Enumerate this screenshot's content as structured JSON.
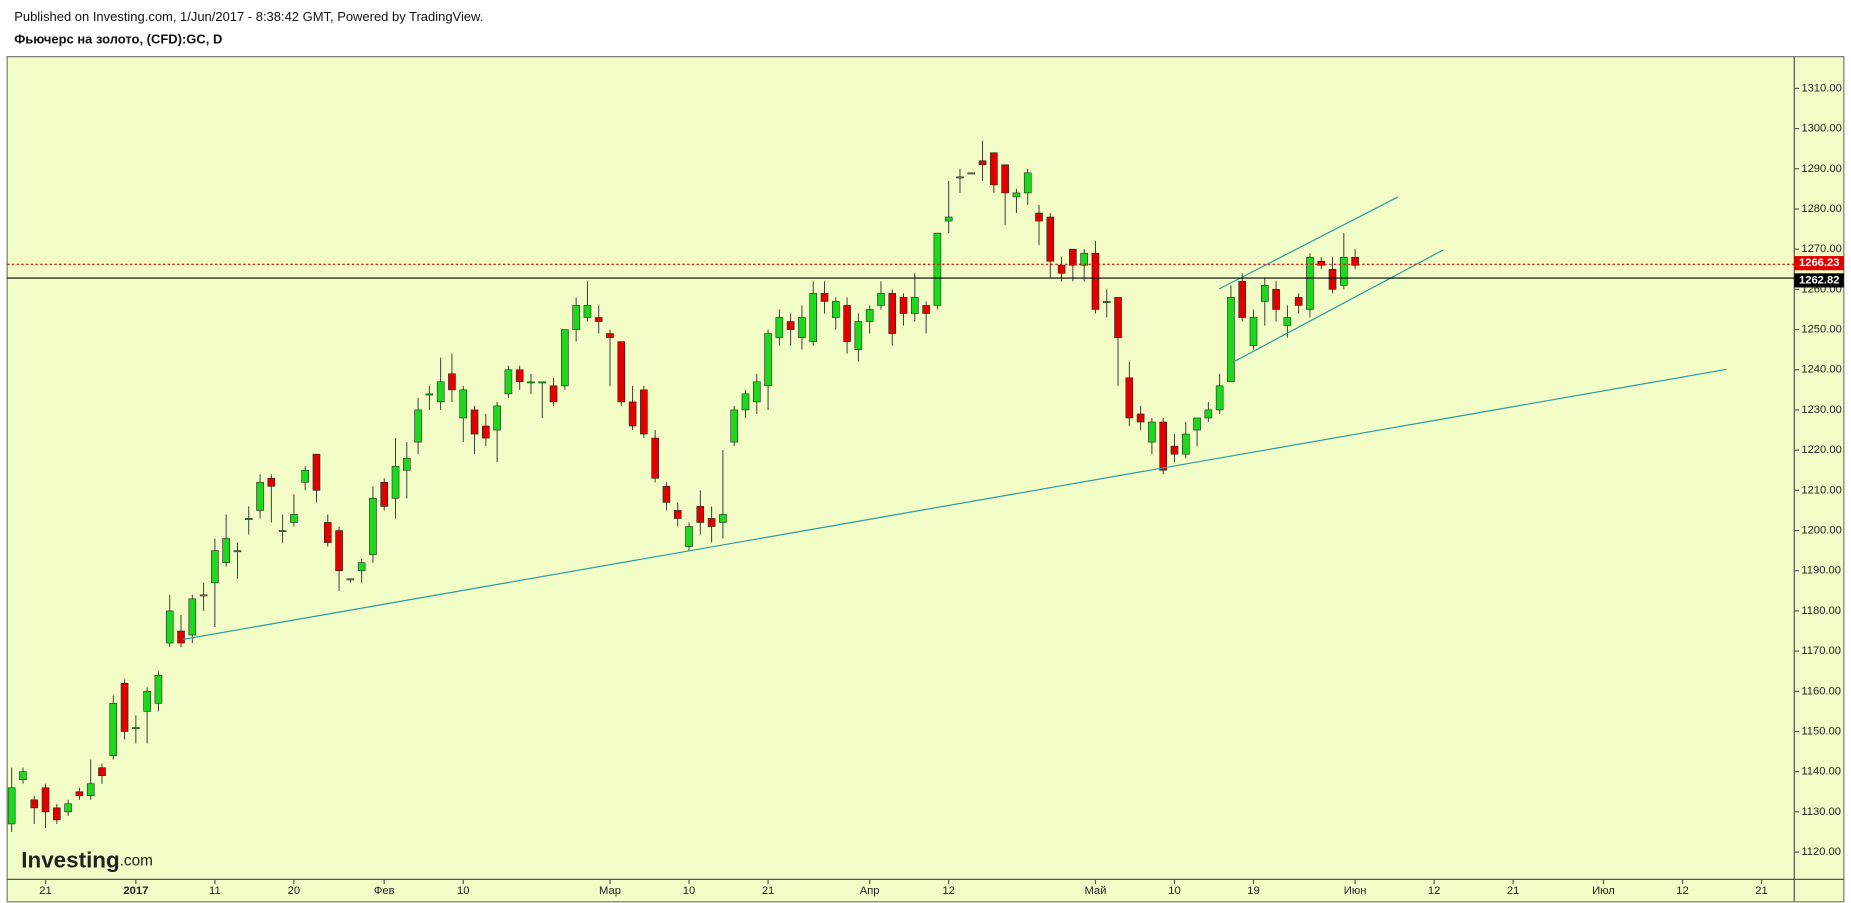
{
  "chart_data": {
    "type": "candlestick",
    "source": "Published on Investing.com, 1/Jun/2017 - 8:38:42 GMT, Powered by TradingView.",
    "title": "Фьючерс на золото, (CFD):GC, D",
    "logo": {
      "name": "Investing",
      "suffix": ".com"
    },
    "up_color": "#1ed81e",
    "down_color": "#e00000",
    "open": [
      1127,
      1138,
      1133,
      1136,
      1131,
      1130,
      1135,
      1134,
      1141,
      1144,
      1162,
      1151,
      1155,
      1157,
      1172,
      1175,
      1174,
      1184,
      1187,
      1192,
      1195,
      1203,
      1205,
      1213,
      1200,
      1202,
      1212,
      1219,
      1202,
      1200,
      1188,
      1190,
      1194,
      1212,
      1208,
      1215,
      1222,
      1234,
      1232,
      1239,
      1228,
      1230,
      1226,
      1225,
      1234,
      1240,
      1237,
      1237,
      1236,
      1236,
      1250,
      1253,
      1253,
      1249,
      1247,
      1232,
      1235,
      1223,
      1211,
      1205,
      1196,
      1206,
      1203,
      1202,
      1222,
      1230,
      1232,
      1236,
      1248,
      1252,
      1248,
      1247,
      1259,
      1253,
      1256,
      1245,
      1252,
      1256,
      1259,
      1258,
      1254,
      1256,
      1256,
      1277,
      1288,
      1289,
      1292,
      1294,
      1291,
      1283,
      1284,
      1279,
      1278,
      1266,
      1270,
      1266,
      1269,
      1257,
      1258,
      1238,
      1229,
      1222,
      1227,
      1221,
      1219,
      1225,
      1228,
      1230,
      1237,
      1262,
      1246,
      1257,
      1260,
      1251,
      1258,
      1255,
      1267,
      1265,
      1261,
      1268
    ],
    "high": [
      1141,
      1141,
      1134,
      1137,
      1132,
      1133,
      1136,
      1143,
      1142,
      1159,
      1163,
      1154,
      1161,
      1165,
      1184,
      1179,
      1184,
      1187,
      1198,
      1204,
      1197,
      1206,
      1214,
      1214,
      1204,
      1209,
      1216,
      1219,
      1204,
      1201,
      1188,
      1193,
      1211,
      1213,
      1223,
      1222,
      1233,
      1236,
      1243,
      1244,
      1236,
      1231,
      1229,
      1232,
      1241,
      1241,
      1239,
      1237,
      1238,
      1250,
      1258,
      1262,
      1256,
      1250,
      1247,
      1236,
      1236,
      1225,
      1212,
      1207,
      1202,
      1210,
      1206,
      1220,
      1231,
      1235,
      1239,
      1250,
      1255,
      1254,
      1256,
      1262,
      1262,
      1258,
      1258,
      1254,
      1256,
      1262,
      1260,
      1259,
      1264,
      1257,
      1274,
      1287,
      1290,
      1289,
      1297,
      1294,
      1291,
      1285,
      1290,
      1281,
      1279,
      1268,
      1270,
      1270,
      1272,
      1260,
      1258,
      1242,
      1231,
      1228,
      1228,
      1224,
      1227,
      1228,
      1232,
      1239,
      1261,
      1264,
      1255,
      1263,
      1262,
      1256,
      1259,
      1269,
      1268,
      1268,
      1274,
      1270
    ],
    "low": [
      1125,
      1137,
      1127,
      1126,
      1127,
      1129,
      1133,
      1133,
      1137,
      1143,
      1148,
      1147,
      1147,
      1155,
      1171,
      1171,
      1172,
      1180,
      1176,
      1191,
      1188,
      1199,
      1203,
      1202,
      1197,
      1201,
      1210,
      1207,
      1196,
      1185,
      1187,
      1187,
      1192,
      1205,
      1203,
      1208,
      1219,
      1230,
      1230,
      1232,
      1222,
      1219,
      1221,
      1217,
      1233,
      1235,
      1234,
      1228,
      1231,
      1235,
      1247,
      1252,
      1249,
      1236,
      1231,
      1225,
      1223,
      1212,
      1205,
      1201,
      1195,
      1199,
      1197,
      1198,
      1221,
      1228,
      1229,
      1230,
      1246,
      1246,
      1245,
      1246,
      1254,
      1250,
      1244,
      1242,
      1249,
      1255,
      1246,
      1251,
      1252,
      1249,
      1255,
      1274,
      1284,
      1289,
      1287,
      1284,
      1276,
      1279,
      1281,
      1271,
      1263,
      1262,
      1262,
      1262,
      1254,
      1253,
      1236,
      1226,
      1225,
      1219,
      1214,
      1217,
      1218,
      1221,
      1227,
      1229,
      1237,
      1252,
      1245,
      1251,
      1252,
      1248,
      1254,
      1253,
      1265,
      1259,
      1260,
      1265
    ],
    "close": [
      1136,
      1140,
      1131,
      1130,
      1128,
      1132,
      1134,
      1137,
      1139,
      1157,
      1150,
      1151,
      1160,
      1164,
      1180,
      1172,
      1183,
      1184,
      1195,
      1198,
      1195,
      1203,
      1212,
      1211,
      1200,
      1204,
      1215,
      1210,
      1197,
      1190,
      1188,
      1192,
      1208,
      1206,
      1216,
      1218,
      1230,
      1234,
      1237,
      1235,
      1235,
      1224,
      1223,
      1231,
      1240,
      1237,
      1237,
      1237,
      1232,
      1250,
      1256,
      1256,
      1252,
      1248,
      1232,
      1226,
      1224,
      1213,
      1207,
      1203,
      1201,
      1202,
      1201,
      1204,
      1230,
      1234,
      1237,
      1249,
      1253,
      1250,
      1253,
      1259,
      1257,
      1257,
      1247,
      1252,
      1255,
      1259,
      1249,
      1254,
      1258,
      1254,
      1274,
      1278,
      1288,
      1289,
      1291,
      1286,
      1284,
      1284,
      1289,
      1277,
      1267,
      1264,
      1266,
      1269,
      1255,
      1257,
      1248,
      1228,
      1227,
      1227,
      1215,
      1219,
      1224,
      1228,
      1230,
      1236,
      1258,
      1253,
      1253,
      1261,
      1255,
      1253,
      1256,
      1268,
      1266,
      1260,
      1268,
      1266
    ],
    "xlim": [
      -0.4,
      157.9
    ],
    "xticks": [
      {
        "value": 3,
        "label": "21"
      },
      {
        "value": 11,
        "label": "2017"
      },
      {
        "value": 18,
        "label": "11"
      },
      {
        "value": 25,
        "label": "20"
      },
      {
        "value": 33,
        "label": "Фев"
      },
      {
        "value": 40,
        "label": "10"
      },
      {
        "value": 53,
        "label": "Мар"
      },
      {
        "value": 60,
        "label": "10"
      },
      {
        "value": 67,
        "label": "21"
      },
      {
        "value": 76,
        "label": "Апр"
      },
      {
        "value": 83,
        "label": "12"
      },
      {
        "value": 96,
        "label": "Май"
      },
      {
        "value": 103,
        "label": "10"
      },
      {
        "value": 110,
        "label": "19"
      },
      {
        "value": 119,
        "label": "Июн"
      },
      {
        "value": 126,
        "label": "12"
      },
      {
        "value": 133,
        "label": "21"
      },
      {
        "value": 141,
        "label": "Июл"
      },
      {
        "value": 148,
        "label": "12"
      },
      {
        "value": 155,
        "label": "21"
      }
    ],
    "ylim": [
      1113.2,
      1317.9
    ],
    "yticks": [
      {
        "value": 1120,
        "label": "1120.00"
      },
      {
        "value": 1130,
        "label": "1130.00"
      },
      {
        "value": 1140,
        "label": "1140.00"
      },
      {
        "value": 1150,
        "label": "1150.00"
      },
      {
        "value": 1160,
        "label": "1160.00"
      },
      {
        "value": 1170,
        "label": "1170.00"
      },
      {
        "value": 1180,
        "label": "1180.00"
      },
      {
        "value": 1190,
        "label": "1190.00"
      },
      {
        "value": 1200,
        "label": "1200.00"
      },
      {
        "value": 1210,
        "label": "1210.00"
      },
      {
        "value": 1220,
        "label": "1220.00"
      },
      {
        "value": 1230,
        "label": "1230.00"
      },
      {
        "value": 1240,
        "label": "1240.00"
      },
      {
        "value": 1250,
        "label": "1250.00"
      },
      {
        "value": 1260,
        "label": "1260.00"
      },
      {
        "value": 1270,
        "label": "1270.00"
      },
      {
        "value": 1280,
        "label": "1280.00"
      },
      {
        "value": 1290,
        "label": "1290.00"
      },
      {
        "value": 1300,
        "label": "1300.00"
      },
      {
        "value": 1310,
        "label": "1310.00"
      }
    ],
    "price_lines": [
      {
        "value": 1266.23,
        "color": "#e00000",
        "dotted": true
      },
      {
        "value": 1262.82,
        "color": "#000000",
        "dotted": false
      }
    ],
    "trendlines": [
      {
        "x": [
          15.16,
          151.9
        ],
        "y": [
          1172.9,
          1240.1
        ],
        "color": "#2a9aa3"
      },
      {
        "x": [
          106.95,
          122.8
        ],
        "y": [
          1260.1,
          1283.0
        ],
        "color": "#2a9aa3"
      },
      {
        "x": [
          108.2,
          126.8
        ],
        "y": [
          1241.9,
          1269.8
        ],
        "color": "#2a9aa3"
      }
    ]
  }
}
